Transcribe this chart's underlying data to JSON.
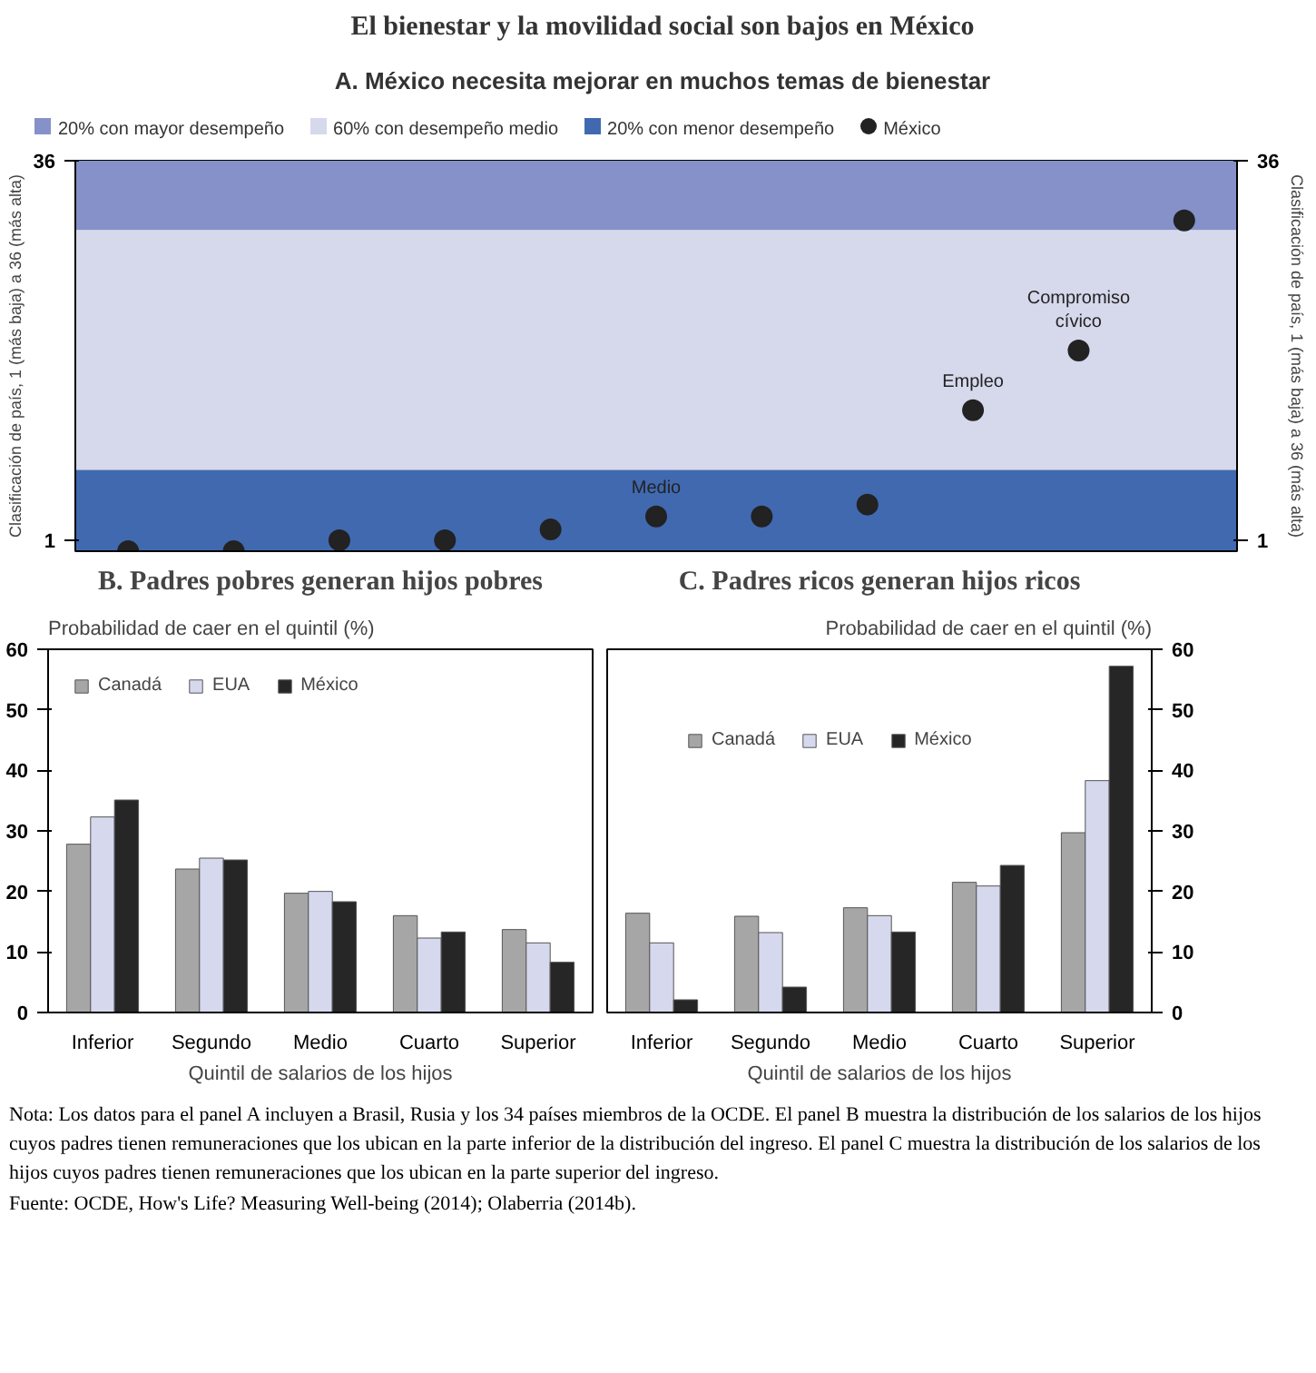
{
  "chart_data": [
    {
      "type": "scatter",
      "title": "El bienestar y la movilidad social son bajos en México",
      "subtitle": "A. México necesita mejorar en muchos temas de bienestar",
      "ylabel": "Clasificación de país, 1 (más baja) a 36 (más alta)",
      "y2label": "Clasificación de país, 1 (más baja) a 36 (más alta)",
      "categories": [
        null,
        null,
        null,
        null,
        null,
        null,
        null,
        null,
        null,
        null,
        null
      ],
      "series": [
        {
          "name": "México",
          "color": "#222222",
          "values": [
            0,
            0,
            1,
            1,
            2,
            3.2,
            3.2,
            4.3,
            13,
            18.5,
            30.5
          ],
          "value_labels": [
            null,
            null,
            null,
            null,
            null,
            "Medio",
            null,
            null,
            "Empleo",
            "Compromiso cívico",
            null
          ]
        }
      ],
      "bands": [
        {
          "axis": "y",
          "from": 29.6,
          "to": 36,
          "label": "20%  con mayor desempeño",
          "color": "#8591c8"
        },
        {
          "axis": "y",
          "from": 7.5,
          "to": 29.6,
          "label": "60%  con desempeño medio",
          "color": "#d6d8ec"
        },
        {
          "axis": "y",
          "from": 0,
          "to": 7.5,
          "label": "20%  con menor desempeño",
          "color": "#4169b0"
        }
      ],
      "ylim": [
        0,
        36
      ],
      "yticks": [
        1,
        36
      ],
      "y2lim": [
        0,
        36
      ],
      "y2ticks": [
        1,
        36
      ],
      "tick_labels": "y",
      "marker": "circle",
      "legend": "top"
    },
    {
      "type": "bar",
      "title": "B. Padres pobres generan hijos pobres",
      "ylabel": "Probabilidad de caer en el quintil (%)",
      "xlabel": "Quintil de salarios de los hijos",
      "categories": [
        "Inferior",
        "Segundo",
        "Medio",
        "Cuarto",
        "Superior"
      ],
      "series": [
        {
          "name": "Canadá",
          "color": "#a6a6a6",
          "values": [
            27.8,
            23.7,
            19.7,
            16.0,
            13.7
          ]
        },
        {
          "name": "EUA",
          "color": "#d6d8ee",
          "values": [
            32.3,
            25.5,
            20.0,
            12.3,
            11.5
          ]
        },
        {
          "name": "México",
          "color": "#262626",
          "values": [
            35.1,
            25.2,
            18.3,
            13.3,
            8.3
          ]
        }
      ],
      "ylim": [
        0,
        60
      ],
      "yticks": [
        0,
        10,
        20,
        30,
        40,
        50,
        60
      ],
      "legend": "top left"
    },
    {
      "type": "bar",
      "title": "C. Padres ricos generan hijos ricos",
      "y2label": "Probabilidad de caer en el quintil (%)",
      "xlabel": "Quintil de salarios de los hijos",
      "categories": [
        "Inferior",
        "Segundo",
        "Medio",
        "Cuarto",
        "Superior"
      ],
      "series": [
        {
          "name": "Canadá",
          "color": "#a6a6a6",
          "axis": "y2",
          "values": [
            16.4,
            15.9,
            17.3,
            21.5,
            29.7
          ]
        },
        {
          "name": "EUA",
          "color": "#d6d8ee",
          "axis": "y2",
          "values": [
            11.5,
            13.2,
            16.0,
            20.9,
            38.3
          ]
        },
        {
          "name": "México",
          "color": "#262626",
          "axis": "y2",
          "values": [
            2.1,
            4.2,
            13.3,
            24.3,
            57.2
          ]
        }
      ],
      "y2lim": [
        0,
        60
      ],
      "y2ticks": [
        0,
        10,
        20,
        30,
        40,
        50,
        60
      ],
      "legend": "top left",
      "annotations": [
        "Nota: Los datos para el panel A incluyen a Brasil, Rusia y los 34 países miembros de la OCDE. El panel B muestra la distribución de los salarios de los hijos cuyos padres tienen remuneraciones que los ubican en la parte inferior de la distribución del ingreso. El panel C muestra la distribución de los salarios de los hijos cuyos padres tienen remuneraciones que los ubican en la parte superior del ingreso.",
        "Fuente: OCDE, How's Life? Measuring Well-being (2014); Olaberria (2014b)."
      ]
    }
  ]
}
